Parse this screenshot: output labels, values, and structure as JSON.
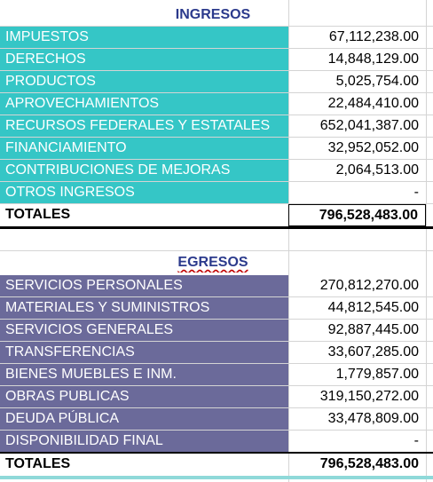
{
  "ingresos": {
    "title": "INGRESOS",
    "rows": [
      {
        "label": "IMPUESTOS",
        "value": "67,112,238.00"
      },
      {
        "label": "DERECHOS",
        "value": "14,848,129.00"
      },
      {
        "label": "PRODUCTOS",
        "value": "5,025,754.00"
      },
      {
        "label": "APROVECHAMIENTOS",
        "value": "22,484,410.00"
      },
      {
        "label": "RECURSOS FEDERALES Y ESTATALES",
        "value": "652,041,387.00"
      },
      {
        "label": "FINANCIAMIENTO",
        "value": "32,952,052.00"
      },
      {
        "label": "CONTRIBUCIONES DE MEJORAS",
        "value": "2,064,513.00"
      },
      {
        "label": "OTROS INGRESOS",
        "value": "-"
      }
    ],
    "total_label": "TOTALES",
    "total_value": "796,528,483.00"
  },
  "egresos": {
    "title": "EGRESOS",
    "rows": [
      {
        "label": "SERVICIOS PERSONALES",
        "value": "270,812,270.00"
      },
      {
        "label": "MATERIALES Y SUMINISTROS",
        "value": "44,812,545.00"
      },
      {
        "label": "SERVICIOS GENERALES",
        "value": "92,887,445.00"
      },
      {
        "label": "TRANSFERENCIAS",
        "value": "33,607,285.00"
      },
      {
        "label": "BIENES MUEBLES E INM.",
        "value": "1,779,857.00"
      },
      {
        "label": "OBRAS PUBLICAS",
        "value": "319,150,272.00"
      },
      {
        "label": "DEUDA PÚBLICA",
        "value": "33,478,809.00"
      },
      {
        "label": "DISPONIBILIDAD FINAL",
        "value": "-"
      }
    ],
    "total_label": "TOTALES",
    "total_value": "796,528,483.00"
  },
  "colors": {
    "ingresos_fill": "#35c6c6",
    "egresos_fill": "#6b6a9a",
    "header_text": "#2b3a8c"
  }
}
